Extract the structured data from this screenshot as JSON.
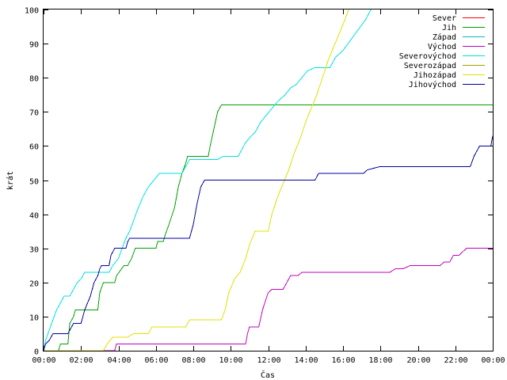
{
  "chart_data": {
    "type": "line",
    "title": "",
    "xlabel": "Čas",
    "ylabel": "krát",
    "ylim": [
      0,
      100
    ],
    "xlim": [
      0,
      24
    ],
    "grid": false,
    "legend_position": "top-right",
    "y_ticks": [
      "0",
      "10",
      "20",
      "30",
      "40",
      "50",
      "60",
      "70",
      "80",
      "90",
      "100"
    ],
    "x_ticks": [
      "00:00",
      "02:00",
      "04:00",
      "06:00",
      "08:00",
      "10:00",
      "12:00",
      "14:00",
      "16:00",
      "18:00",
      "20:00",
      "22:00",
      "00:00"
    ],
    "series": [
      {
        "name": "Sever",
        "color": "#ff0000",
        "points": []
      },
      {
        "name": "Jih",
        "color": "#00a000",
        "points": [
          [
            0,
            0
          ],
          [
            0.8,
            0
          ],
          [
            0.9,
            2
          ],
          [
            1.3,
            2
          ],
          [
            1.4,
            8
          ],
          [
            1.6,
            10
          ],
          [
            1.7,
            12
          ],
          [
            2.9,
            12
          ],
          [
            3.0,
            17
          ],
          [
            3.2,
            20
          ],
          [
            3.8,
            20
          ],
          [
            3.9,
            22
          ],
          [
            4.3,
            25
          ],
          [
            4.5,
            25
          ],
          [
            4.7,
            27
          ],
          [
            4.9,
            30
          ],
          [
            6.0,
            30
          ],
          [
            6.1,
            32
          ],
          [
            6.4,
            32
          ],
          [
            6.5,
            34
          ],
          [
            6.7,
            37
          ],
          [
            7.0,
            42
          ],
          [
            7.2,
            48
          ],
          [
            7.4,
            52
          ],
          [
            7.6,
            55
          ],
          [
            7.7,
            57
          ],
          [
            8.8,
            57
          ],
          [
            8.9,
            60
          ],
          [
            9.1,
            65
          ],
          [
            9.3,
            70
          ],
          [
            9.5,
            72
          ],
          [
            24,
            72
          ]
        ]
      },
      {
        "name": "Západ",
        "color": "#00c0c0",
        "points": []
      },
      {
        "name": "Východ",
        "color": "#c000c0",
        "points": [
          [
            0,
            0
          ],
          [
            3.8,
            0
          ],
          [
            3.9,
            2
          ],
          [
            10.8,
            2
          ],
          [
            10.9,
            5
          ],
          [
            11.0,
            7
          ],
          [
            11.5,
            7
          ],
          [
            11.7,
            12
          ],
          [
            12.0,
            17
          ],
          [
            12.2,
            18
          ],
          [
            12.8,
            18
          ],
          [
            13.0,
            20
          ],
          [
            13.2,
            22
          ],
          [
            13.6,
            22
          ],
          [
            13.8,
            23
          ],
          [
            18.5,
            23
          ],
          [
            18.8,
            24
          ],
          [
            19.2,
            24
          ],
          [
            19.6,
            25
          ],
          [
            21.2,
            25
          ],
          [
            21.4,
            26
          ],
          [
            21.7,
            26
          ],
          [
            21.9,
            28
          ],
          [
            22.2,
            28
          ],
          [
            22.4,
            29
          ],
          [
            22.6,
            30
          ],
          [
            24,
            30
          ]
        ]
      },
      {
        "name": "Severovýchod",
        "color": "#00e0e0",
        "points": [
          [
            0,
            0
          ],
          [
            0.1,
            3
          ],
          [
            0.3,
            6
          ],
          [
            0.5,
            9
          ],
          [
            0.7,
            12
          ],
          [
            0.9,
            14
          ],
          [
            1.1,
            16
          ],
          [
            1.4,
            16
          ],
          [
            1.6,
            18
          ],
          [
            1.8,
            20
          ],
          [
            2.0,
            21
          ],
          [
            2.2,
            23
          ],
          [
            3.5,
            23
          ],
          [
            3.7,
            25
          ],
          [
            4.0,
            27
          ],
          [
            4.2,
            30
          ],
          [
            4.4,
            33
          ],
          [
            4.6,
            35
          ],
          [
            4.8,
            38
          ],
          [
            5.0,
            41
          ],
          [
            5.3,
            45
          ],
          [
            5.6,
            48
          ],
          [
            5.9,
            50
          ],
          [
            6.2,
            52
          ],
          [
            7.4,
            52
          ],
          [
            7.6,
            54
          ],
          [
            7.8,
            56
          ],
          [
            9.3,
            56
          ],
          [
            9.6,
            57
          ],
          [
            10.4,
            57
          ],
          [
            10.6,
            59
          ],
          [
            10.8,
            61
          ],
          [
            11.1,
            63
          ],
          [
            11.3,
            64
          ],
          [
            11.6,
            67
          ],
          [
            11.9,
            69
          ],
          [
            12.2,
            71
          ],
          [
            12.5,
            73
          ],
          [
            12.9,
            75
          ],
          [
            13.2,
            77
          ],
          [
            13.5,
            78
          ],
          [
            13.8,
            80
          ],
          [
            14.1,
            82
          ],
          [
            14.5,
            83
          ],
          [
            15.3,
            83
          ],
          [
            15.6,
            86
          ],
          [
            16.0,
            88
          ],
          [
            16.4,
            91
          ],
          [
            16.8,
            94
          ],
          [
            17.2,
            97
          ],
          [
            17.5,
            100
          ]
        ]
      },
      {
        "name": "Severozápad",
        "color": "#a0a000",
        "points": []
      },
      {
        "name": "Jihozápad",
        "color": "#e0e000",
        "points": [
          [
            0,
            0
          ],
          [
            3.2,
            0
          ],
          [
            3.4,
            2
          ],
          [
            3.7,
            4
          ],
          [
            4.5,
            4
          ],
          [
            4.8,
            5
          ],
          [
            5.6,
            5
          ],
          [
            5.8,
            7
          ],
          [
            7.6,
            7
          ],
          [
            7.8,
            9
          ],
          [
            9.5,
            9
          ],
          [
            9.7,
            12
          ],
          [
            9.9,
            17
          ],
          [
            10.2,
            21
          ],
          [
            10.5,
            23
          ],
          [
            10.8,
            27
          ],
          [
            11.0,
            31
          ],
          [
            11.3,
            35
          ],
          [
            12.0,
            35
          ],
          [
            12.2,
            40
          ],
          [
            12.5,
            45
          ],
          [
            12.8,
            49
          ],
          [
            13.1,
            53
          ],
          [
            13.4,
            58
          ],
          [
            13.7,
            62
          ],
          [
            14.0,
            67
          ],
          [
            14.3,
            71
          ],
          [
            14.6,
            75
          ],
          [
            14.9,
            80
          ],
          [
            15.2,
            85
          ],
          [
            15.5,
            89
          ],
          [
            15.8,
            93
          ],
          [
            16.1,
            97
          ],
          [
            16.3,
            100
          ]
        ]
      },
      {
        "name": "Jihovýchod",
        "color": "#0000a0",
        "points": [
          [
            0,
            0
          ],
          [
            0.1,
            2
          ],
          [
            0.3,
            3
          ],
          [
            0.5,
            5
          ],
          [
            1.3,
            5
          ],
          [
            1.5,
            7
          ],
          [
            1.6,
            8
          ],
          [
            2.0,
            8
          ],
          [
            2.2,
            12
          ],
          [
            2.5,
            16
          ],
          [
            2.7,
            20
          ],
          [
            2.9,
            22
          ],
          [
            3.0,
            24
          ],
          [
            3.1,
            25
          ],
          [
            3.5,
            25
          ],
          [
            3.6,
            28
          ],
          [
            3.8,
            30
          ],
          [
            4.4,
            30
          ],
          [
            4.5,
            32
          ],
          [
            4.6,
            33
          ],
          [
            7.8,
            33
          ],
          [
            8.0,
            37
          ],
          [
            8.2,
            43
          ],
          [
            8.4,
            48
          ],
          [
            8.6,
            50
          ],
          [
            14.5,
            50
          ],
          [
            14.7,
            52
          ],
          [
            17.1,
            52
          ],
          [
            17.3,
            53
          ],
          [
            18.0,
            54
          ],
          [
            22.8,
            54
          ],
          [
            23.0,
            57
          ],
          [
            23.3,
            60
          ],
          [
            23.9,
            60
          ],
          [
            24.0,
            63
          ]
        ]
      }
    ]
  }
}
